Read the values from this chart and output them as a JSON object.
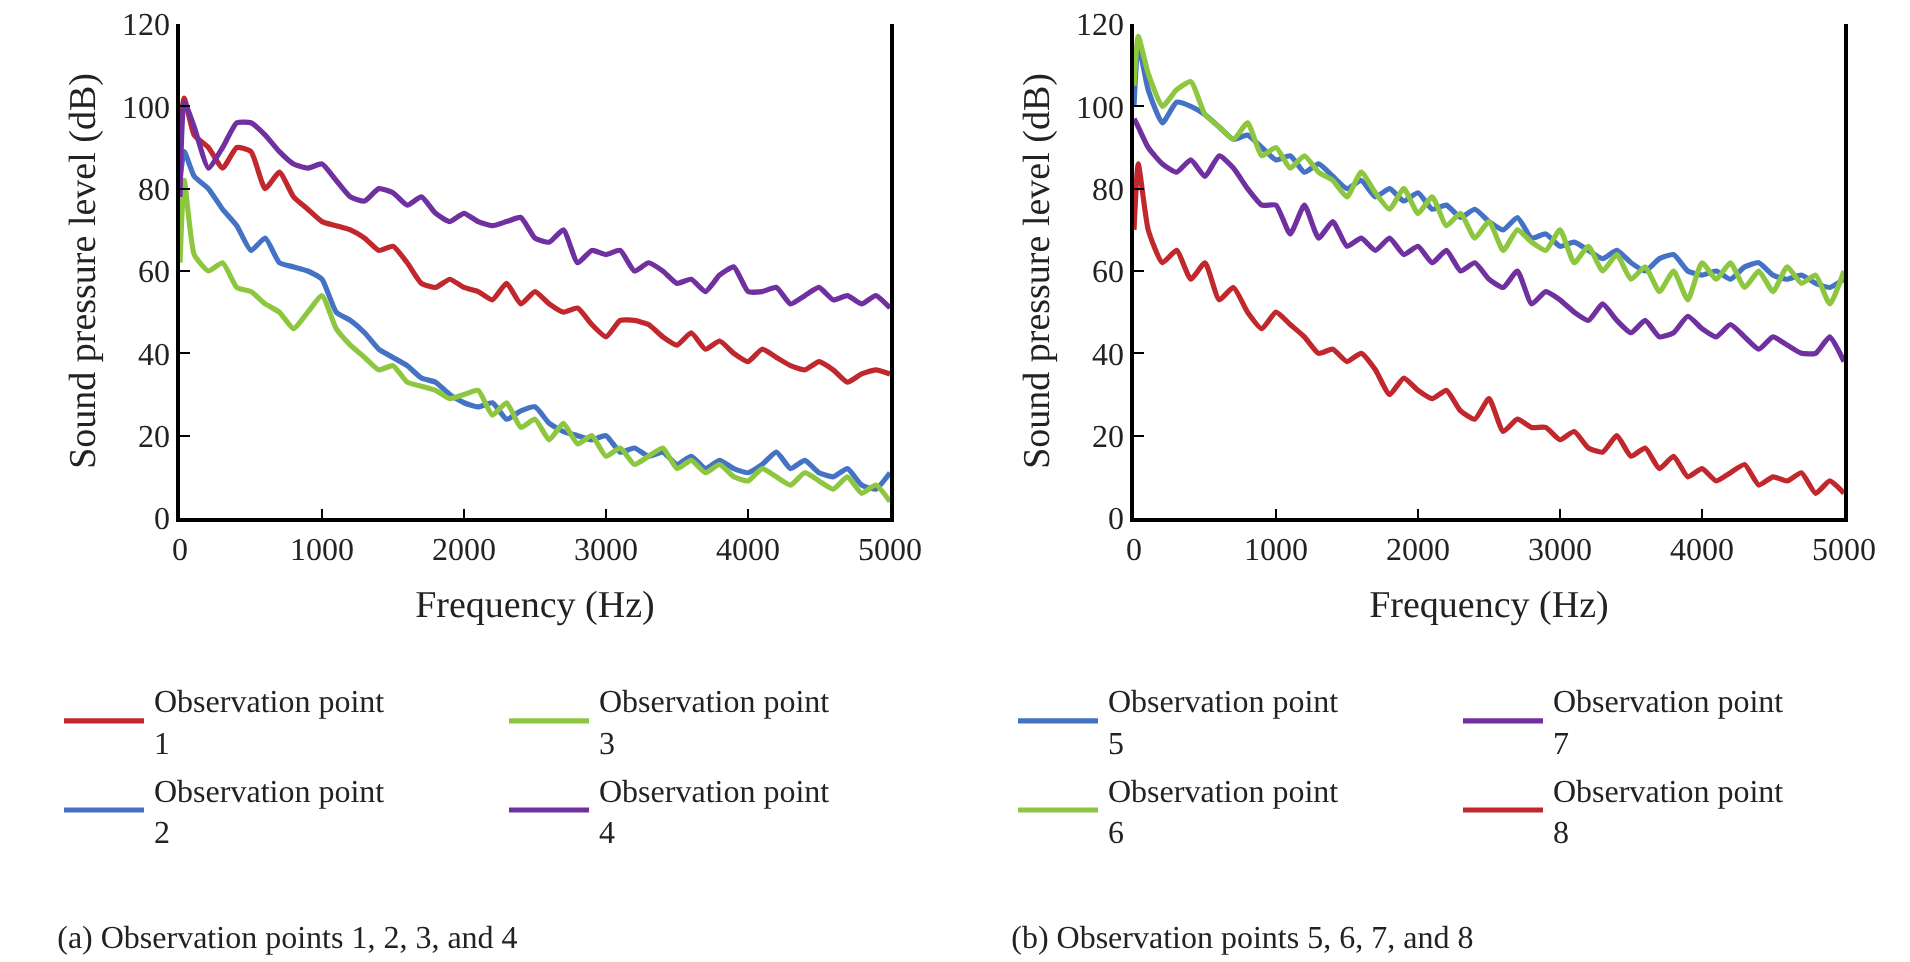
{
  "chart_data": [
    {
      "type": "line",
      "title": "(a) Observation points 1, 2, 3, and 4",
      "xlabel": "Frequency (Hz)",
      "ylabel": "Sound pressure level (dB)",
      "x": [
        0,
        30,
        100,
        200,
        300,
        400,
        500,
        600,
        700,
        800,
        900,
        1000,
        1100,
        1200,
        1300,
        1400,
        1500,
        1600,
        1700,
        1800,
        1900,
        2000,
        2100,
        2200,
        2300,
        2400,
        2500,
        2600,
        2700,
        2800,
        2900,
        3000,
        3100,
        3200,
        3300,
        3400,
        3500,
        3600,
        3700,
        3800,
        3900,
        4000,
        4100,
        4200,
        4300,
        4400,
        4500,
        4600,
        4700,
        4800,
        4900,
        5000
      ],
      "series": [
        {
          "name": "Observation point 1",
          "color": "#c0282d",
          "values": [
            95,
            102,
            93,
            90,
            85,
            90,
            89,
            80,
            84,
            78,
            75,
            72,
            71,
            70,
            68,
            65,
            66,
            62,
            57,
            56,
            58,
            56,
            55,
            53,
            57,
            52,
            55,
            52,
            50,
            51,
            47,
            44,
            48,
            48,
            47,
            44,
            42,
            45,
            41,
            43,
            40,
            38,
            41,
            39,
            37,
            36,
            38,
            36,
            33,
            35,
            36,
            35
          ]
        },
        {
          "name": "Observation point 2",
          "color": "#4472c4",
          "values": [
            82,
            89,
            83,
            80,
            75,
            71,
            65,
            68,
            62,
            61,
            60,
            58,
            50,
            48,
            45,
            41,
            39,
            37,
            34,
            33,
            30,
            28,
            27,
            28,
            24,
            26,
            27,
            23,
            21,
            20,
            19,
            20,
            16,
            17,
            15,
            16,
            13,
            15,
            12,
            14,
            12,
            11,
            13,
            16,
            12,
            14,
            11,
            10,
            12,
            8,
            7,
            11
          ]
        },
        {
          "name": "Observation point 3",
          "color": "#8dc63f",
          "values": [
            62,
            82,
            64,
            60,
            62,
            56,
            55,
            52,
            50,
            46,
            50,
            54,
            46,
            42,
            39,
            36,
            37,
            33,
            32,
            31,
            29,
            30,
            31,
            25,
            28,
            22,
            24,
            19,
            23,
            18,
            20,
            15,
            17,
            13,
            15,
            17,
            12,
            14,
            11,
            13,
            10,
            9,
            12,
            10,
            8,
            11,
            9,
            7,
            10,
            6,
            8,
            4
          ]
        },
        {
          "name": "Observation point 4",
          "color": "#7030a0",
          "values": [
            78,
            101,
            95,
            85,
            90,
            96,
            96,
            93,
            89,
            86,
            85,
            86,
            82,
            78,
            77,
            80,
            79,
            76,
            78,
            74,
            72,
            74,
            72,
            71,
            72,
            73,
            68,
            67,
            70,
            62,
            65,
            64,
            65,
            60,
            62,
            60,
            57,
            58,
            55,
            59,
            61,
            55,
            55,
            56,
            52,
            54,
            56,
            53,
            54,
            52,
            54,
            51
          ]
        }
      ],
      "xlim": [
        0,
        5000
      ],
      "xticks": [
        0,
        1000,
        2000,
        3000,
        4000,
        5000
      ],
      "ylim": [
        0,
        120
      ],
      "yticks": [
        0,
        20,
        40,
        60,
        80,
        100,
        120
      ],
      "grid": false,
      "legend": "bottom",
      "line_style": "solid",
      "marker": "none"
    },
    {
      "type": "line",
      "title": "(b) Observation points 5, 6, 7, and 8",
      "xlabel": "Frequency (Hz)",
      "ylabel": "Sound pressure level (dB)",
      "x": [
        0,
        30,
        100,
        200,
        300,
        400,
        500,
        600,
        700,
        800,
        900,
        1000,
        1100,
        1200,
        1300,
        1400,
        1500,
        1600,
        1700,
        1800,
        1900,
        2000,
        2100,
        2200,
        2300,
        2400,
        2500,
        2600,
        2700,
        2800,
        2900,
        3000,
        3100,
        3200,
        3300,
        3400,
        3500,
        3600,
        3700,
        3800,
        3900,
        4000,
        4100,
        4200,
        4300,
        4400,
        4500,
        4600,
        4700,
        4800,
        4900,
        5000
      ],
      "series": [
        {
          "name": "Observation point 5",
          "color": "#4472c4",
          "values": [
            100,
            115,
            104,
            96,
            101,
            100,
            98,
            95,
            92,
            93,
            90,
            87,
            88,
            84,
            86,
            83,
            80,
            82,
            78,
            80,
            77,
            79,
            75,
            76,
            73,
            75,
            72,
            70,
            73,
            68,
            69,
            66,
            67,
            65,
            63,
            65,
            62,
            60,
            63,
            64,
            60,
            59,
            60,
            58,
            61,
            62,
            59,
            58,
            59,
            57,
            56,
            58
          ]
        },
        {
          "name": "Observation point 6",
          "color": "#8dc63f",
          "values": [
            105,
            117,
            108,
            100,
            104,
            106,
            98,
            95,
            92,
            96,
            88,
            90,
            85,
            88,
            84,
            82,
            78,
            84,
            79,
            75,
            80,
            74,
            78,
            71,
            74,
            68,
            72,
            65,
            70,
            67,
            65,
            70,
            62,
            66,
            60,
            64,
            58,
            61,
            55,
            60,
            53,
            62,
            58,
            62,
            56,
            60,
            55,
            61,
            57,
            59,
            52,
            60
          ]
        },
        {
          "name": "Observation point 7",
          "color": "#7030a0",
          "values": [
            97,
            95,
            90,
            86,
            84,
            87,
            83,
            88,
            85,
            80,
            76,
            76,
            69,
            76,
            68,
            72,
            66,
            68,
            65,
            68,
            64,
            66,
            62,
            65,
            60,
            62,
            58,
            56,
            60,
            52,
            55,
            53,
            50,
            48,
            52,
            48,
            45,
            48,
            44,
            45,
            49,
            46,
            44,
            47,
            44,
            41,
            44,
            42,
            40,
            40,
            44,
            38
          ]
        },
        {
          "name": "Observation point 8",
          "color": "#c0282d",
          "values": [
            70,
            86,
            70,
            62,
            65,
            58,
            62,
            53,
            56,
            50,
            46,
            50,
            47,
            44,
            40,
            41,
            38,
            40,
            36,
            30,
            34,
            31,
            29,
            31,
            26,
            24,
            29,
            21,
            24,
            22,
            22,
            19,
            21,
            17,
            16,
            20,
            15,
            17,
            12,
            15,
            10,
            12,
            9,
            11,
            13,
            8,
            10,
            9,
            11,
            6,
            9,
            6
          ]
        }
      ],
      "xlim": [
        0,
        5000
      ],
      "xticks": [
        0,
        1000,
        2000,
        3000,
        4000,
        5000
      ],
      "ylim": [
        0,
        120
      ],
      "yticks": [
        0,
        20,
        40,
        60,
        80,
        100,
        120
      ],
      "grid": false,
      "legend": "bottom",
      "line_style": "solid",
      "marker": "none"
    }
  ]
}
